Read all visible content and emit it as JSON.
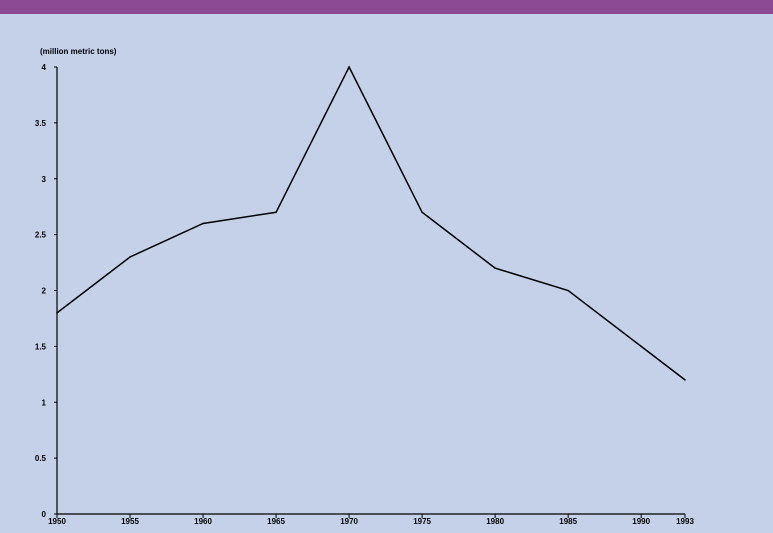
{
  "colors": {
    "background": "#c5d0e9",
    "top_bar": "#8b4a93",
    "line": "#000000"
  },
  "chart_data": {
    "type": "line",
    "title": "",
    "xlabel": "",
    "ylabel": "(million metric tons)",
    "x": [
      1950,
      1955,
      1960,
      1965,
      1970,
      1975,
      1980,
      1985,
      1990,
      1993
    ],
    "series": [
      {
        "values": [
          1.8,
          2.3,
          2.6,
          2.7,
          4.0,
          2.7,
          2.2,
          2.0,
          1.5,
          1.2
        ]
      }
    ],
    "x_tick_labels": [
      "1950",
      "1955",
      "1960",
      "1965",
      "1970",
      "1975",
      "1980",
      "1985",
      "1990",
      "1993"
    ],
    "y_tick_labels": [
      "0",
      "0.5",
      "1",
      "1.5",
      "2",
      "2.5",
      "3",
      "3.5",
      "4"
    ],
    "y_ticks": [
      0,
      0.5,
      1,
      1.5,
      2,
      2.5,
      3,
      3.5,
      4
    ],
    "ylim": [
      0,
      4
    ],
    "grid": false,
    "legend": "none"
  }
}
